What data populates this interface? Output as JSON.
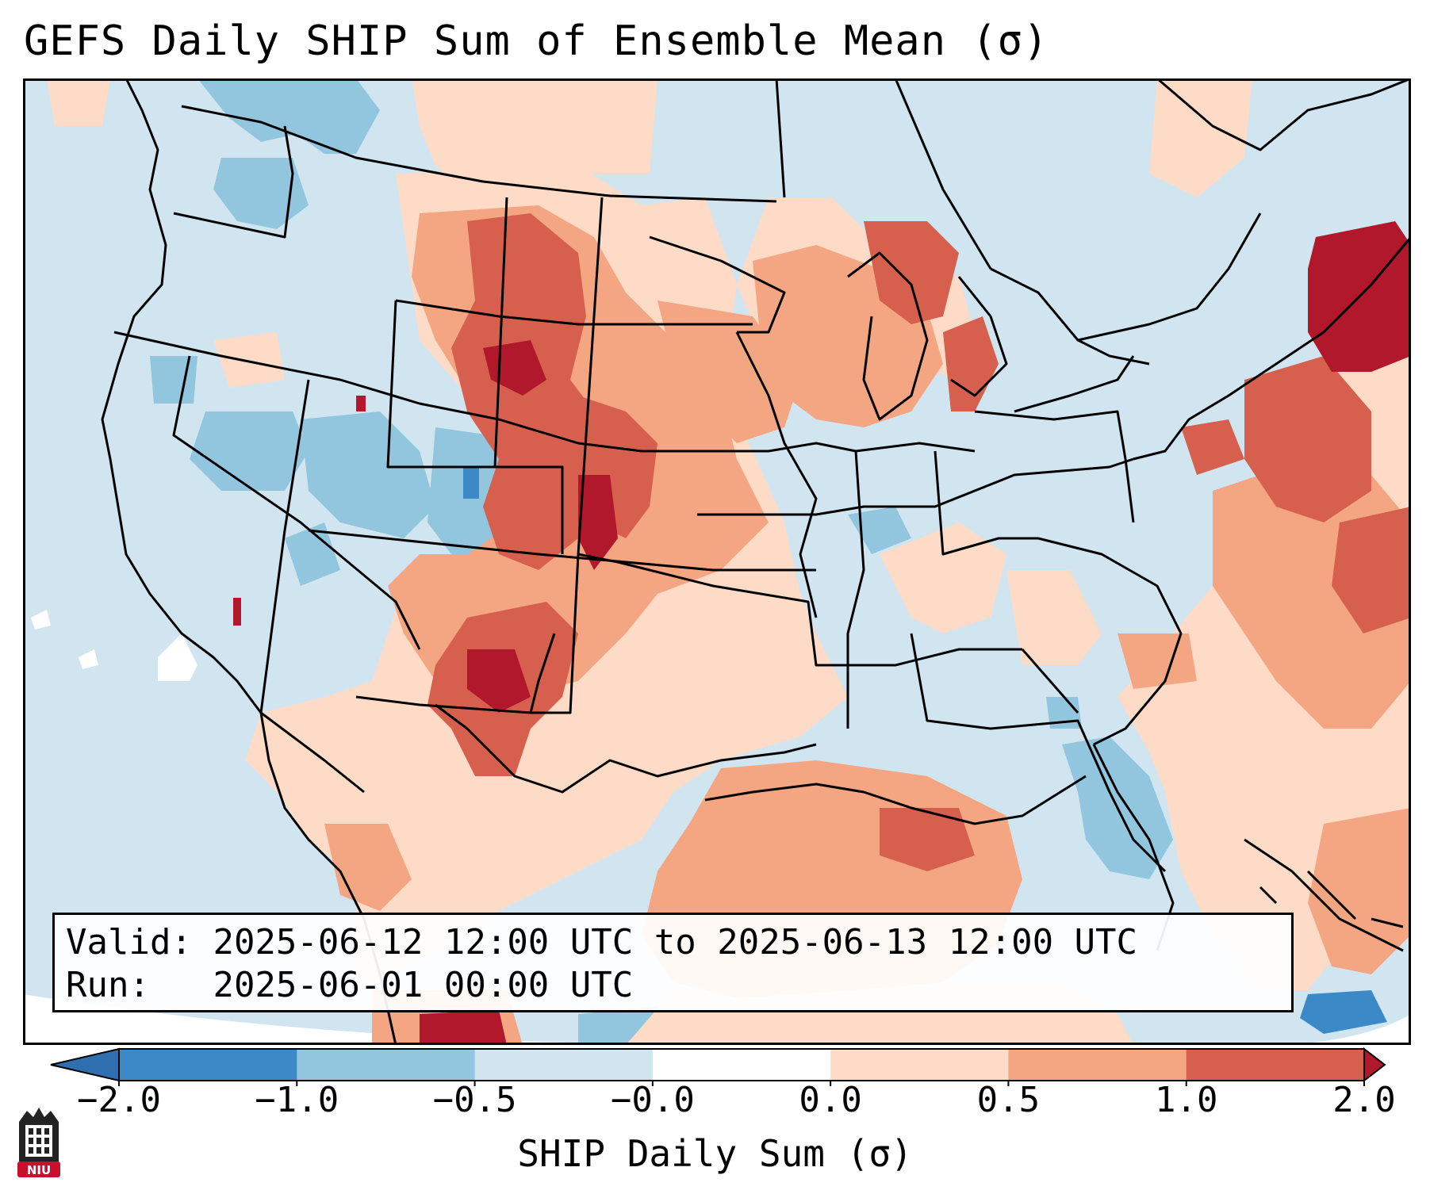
{
  "title": "GEFS Daily SHIP Sum of Ensemble Mean (σ)",
  "info": {
    "valid_label": "Valid:",
    "valid_value": "2025-06-12 12:00 UTC to 2025-06-13 12:00 UTC",
    "run_label": "Run:",
    "run_value": "2025-06-01 00:00 UTC"
  },
  "colorbar": {
    "label": "SHIP Daily Sum (σ)",
    "tick_labels": [
      "−2.0",
      "−1.0",
      "−0.5",
      "−0.0",
      "0.0",
      "0.5",
      "1.0",
      "2.0"
    ],
    "bins": [
      {
        "color": "#2f6fb0"
      },
      {
        "color": "#3b8ac7"
      },
      {
        "color": "#92c5de"
      },
      {
        "color": "#d1e5f0"
      },
      {
        "color": "#ffffff"
      },
      {
        "color": "#fddbc7"
      },
      {
        "color": "#f4a582"
      },
      {
        "color": "#d6604d"
      },
      {
        "color": "#b2182b"
      }
    ]
  },
  "colors": {
    "background_anomaly": "#d1e5f0",
    "state_lines": "#000000"
  },
  "logo": {
    "text": "NIU",
    "color": "#c8102e"
  }
}
